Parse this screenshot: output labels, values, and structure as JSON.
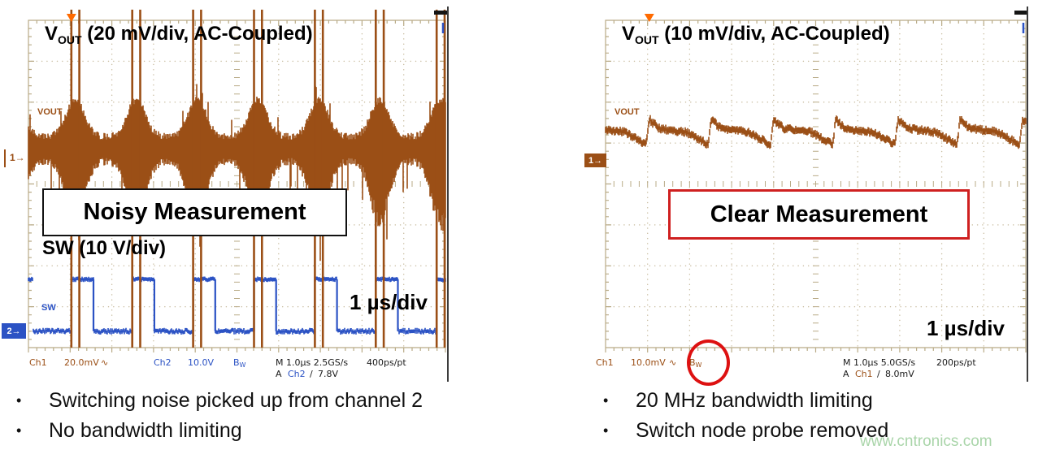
{
  "slide": {
    "watermark": "www.cntronics.com",
    "bullet_glyph": "•"
  },
  "colors": {
    "ch1_brown": "#9b4f16",
    "ch2_blue": "#2b52c4",
    "grid_tick": "#b9ab87",
    "grid_dot": "#c9bda1",
    "trigger_orange": "#ff6a00",
    "annotation_red": "#dd1111",
    "watermark_green": "#a9d5a9",
    "status_black": "#1a1a1a"
  },
  "left_scope": {
    "title": {
      "v": "V",
      "sub": "OUT",
      "rest": " (20 mV/div, AC-Coupled)"
    },
    "vout_trace_label": "VOUT",
    "sw_trace_label": "SW",
    "annotation": "Noisy Measurement",
    "sw_caption": "SW (10 V/div)",
    "timebase_caption": "1 µs/div",
    "ch1_marker": "1→",
    "ch2_marker": "2→",
    "status": {
      "ch1": "Ch1",
      "ch1_scale": "20.0mV",
      "coupling": "∿",
      "ch2": "Ch2",
      "ch2_scale": "10.0V",
      "bw_b": "B",
      "bw_w": "W",
      "acq": "M 1.0µs 2.5GS/s",
      "rate": "400ps/pt",
      "trig_a": "A",
      "trig_src": "Ch2",
      "trig_slope": "/",
      "trig_level": "7.8V"
    },
    "bullets": [
      "Switching noise picked up from channel 2",
      "No bandwidth limiting"
    ]
  },
  "right_scope": {
    "title": {
      "v": "V",
      "sub": "OUT",
      "rest": " (10 mV/div, AC-Coupled)"
    },
    "vout_trace_label": "VOUT",
    "annotation": "Clear Measurement",
    "timebase_caption": "1 µs/div",
    "ch1_marker": "1→",
    "status": {
      "ch1": "Ch1",
      "ch1_scale": "10.0mV",
      "coupling": "∿",
      "bw_b": "B",
      "bw_w": "W",
      "acq": "M 1.0µs 5.0GS/s",
      "rate": "200ps/pt",
      "trig_a": "A",
      "trig_src": "Ch1",
      "trig_slope": "/",
      "trig_level": "8.0mV"
    },
    "bullets": [
      "20 MHz bandwidth limiting",
      "Switch node probe removed"
    ]
  },
  "chart_data": [
    {
      "id": "left",
      "type": "line",
      "title": "Noisy Measurement",
      "time_per_div": "1 µs",
      "divisions_x": 10,
      "divisions_y": 8,
      "switching_period_us": 1.46,
      "switching_frequency_kHz": 685,
      "series": [
        {
          "name": "SW",
          "kind": "square",
          "color_key": "ch2_blue",
          "scale": "10 V/div",
          "low_div": 7.6,
          "high_div": 6.33,
          "edge_start_div": 1.03,
          "period_div": 1.46,
          "pulse_width_div": 0.53
        },
        {
          "name": "VOUT",
          "kind": "noisy_band",
          "color_key": "ch1_brown",
          "scale": "20 mV/div",
          "coupling": "AC",
          "center_div": 3.13,
          "band_div": 0.29,
          "burst_band_div": 0.9,
          "edge_start_div": 1.03,
          "period_div": 1.46,
          "spike_offsets_div": [
            0,
            0.19
          ],
          "spike_top_div": -0.26,
          "spike_bottom_div": 8.0
        }
      ]
    },
    {
      "id": "right",
      "type": "line",
      "title": "Clear Measurement",
      "time_per_div": "1 µs",
      "divisions_x": 10,
      "divisions_y": 8,
      "switching_period_us": 1.48,
      "switching_frequency_kHz": 676,
      "series": [
        {
          "name": "VOUT",
          "kind": "ripple",
          "color_key": "ch1_brown",
          "scale": "10 mV/div",
          "coupling": "AC",
          "center_div": 2.68,
          "band_div": 0.16,
          "overshoot_div": 0.28,
          "sag_div": 0.36,
          "edge_start_div": 1.04,
          "period_div": 1.48
        }
      ]
    }
  ]
}
